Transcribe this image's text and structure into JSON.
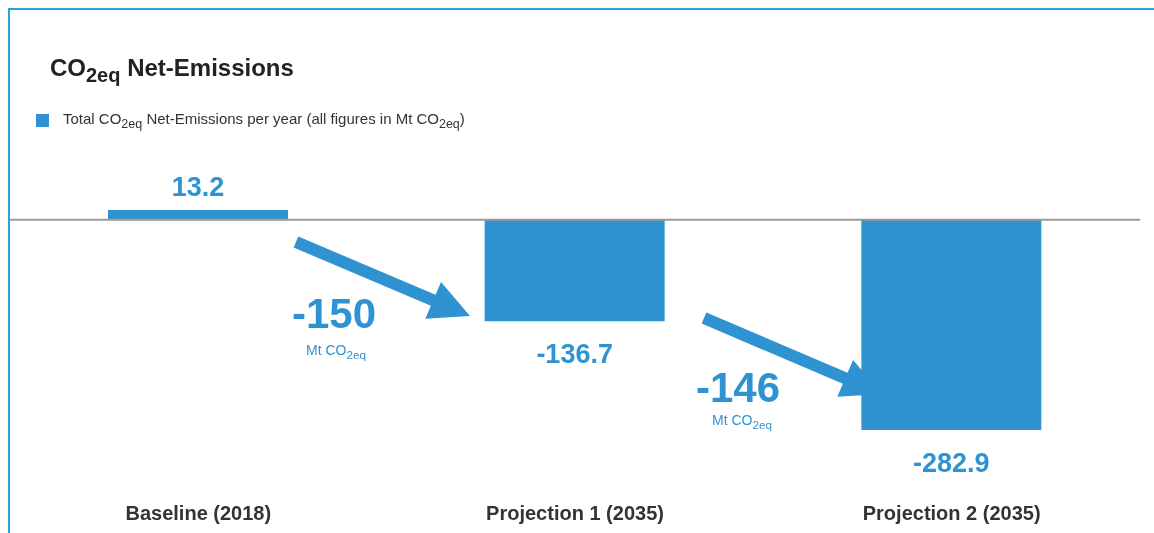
{
  "chart_data": {
    "type": "bar",
    "title": "CO$_{2eq}$ Net-Emissions",
    "categories": [
      "Baseline (2018)",
      "Projection 1 (2035)",
      "Projection 2 (2035)"
    ],
    "series": [
      {
        "name": "Total CO$_{2eq}$ Net-Emissions per year (all figures in Mt CO$_{2eq}$)",
        "color": "#2f93d1",
        "values": [
          13.2,
          -136.7,
          -282.9
        ]
      }
    ],
    "data_labels": true,
    "tick_labels": "x",
    "legend": "top left",
    "grid": false,
    "ref_lines": [
      {
        "axis": "y",
        "value": 0,
        "color": "#9a9a9a"
      }
    ],
    "annotations": [
      "-150",
      "Mt CO$_{2eq}$",
      "-146",
      "Mt CO$_{2eq}$"
    ]
  }
}
